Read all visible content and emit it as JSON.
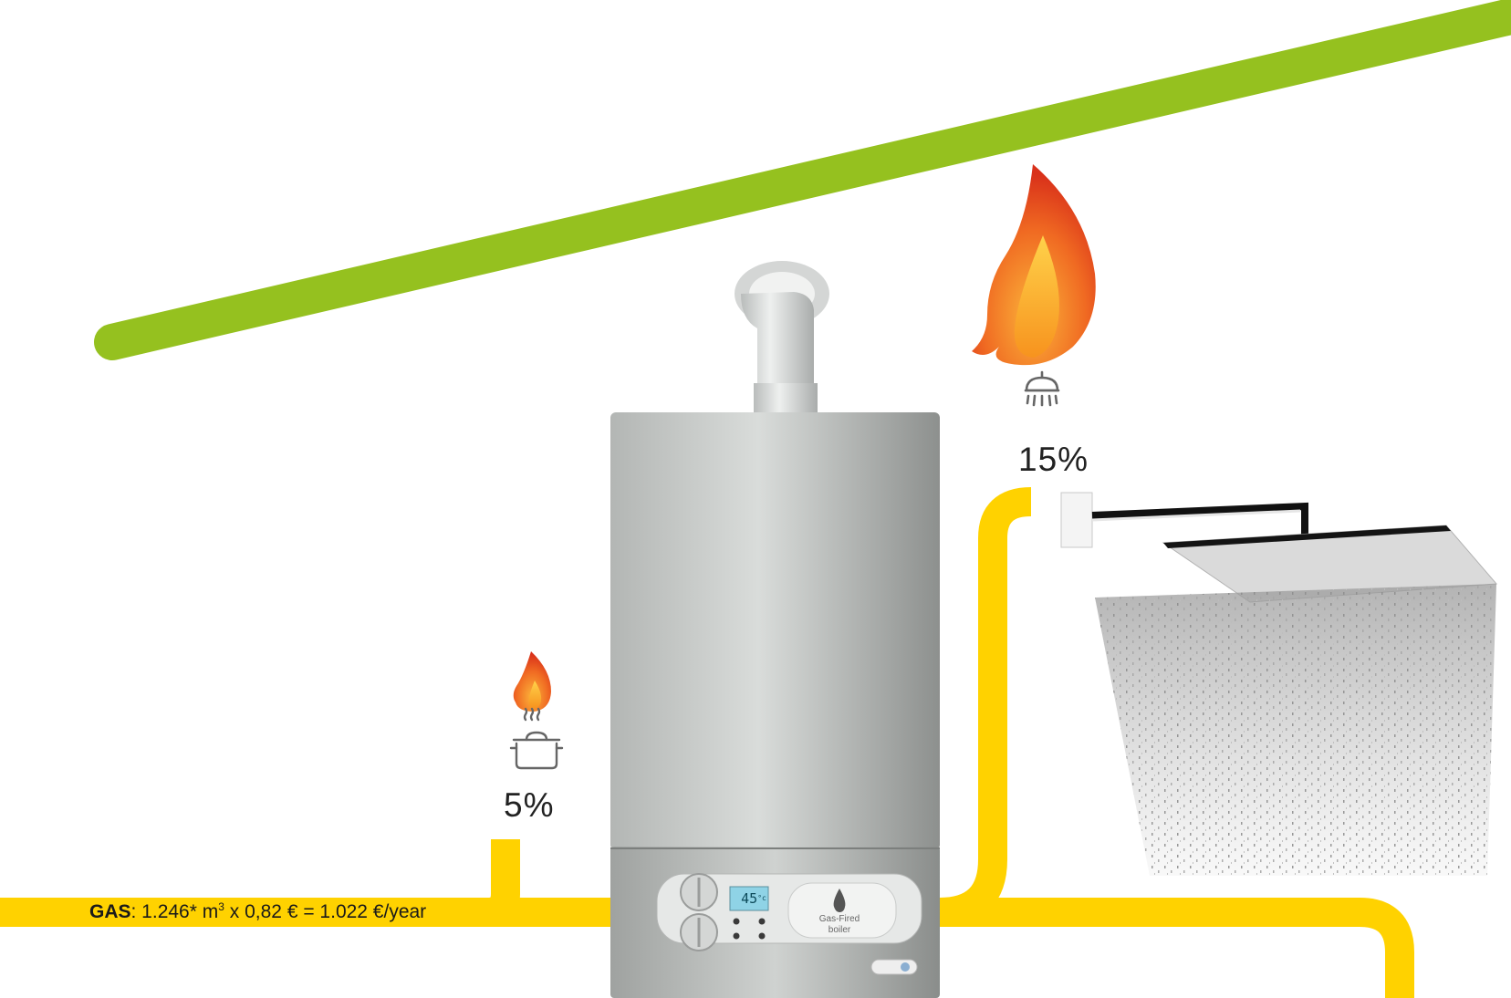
{
  "diagram": {
    "cooking": {
      "percent": "5%",
      "icons": [
        "flame-icon",
        "cooking-pot-icon"
      ]
    },
    "shower": {
      "percent": "15%",
      "icons": [
        "flame-icon",
        "shower-icon"
      ]
    },
    "gas_line": {
      "label_bold": "GAS",
      "label_main": ": 1.246* m",
      "label_sup": "3",
      "label_rest": " x 0,82 € = 1.022 €/year"
    },
    "boiler": {
      "display": "45",
      "display_unit": "°c",
      "brand_line1": "Gas-Fired",
      "brand_line2": "boiler"
    }
  },
  "colors": {
    "roof_line": "#95c11f",
    "gas_pipe": "#ffd200",
    "flame_outer": "#e8411b",
    "flame_inner": "#f9a825",
    "boiler_body": "#a8aba9",
    "display": "#8fd3e6"
  }
}
